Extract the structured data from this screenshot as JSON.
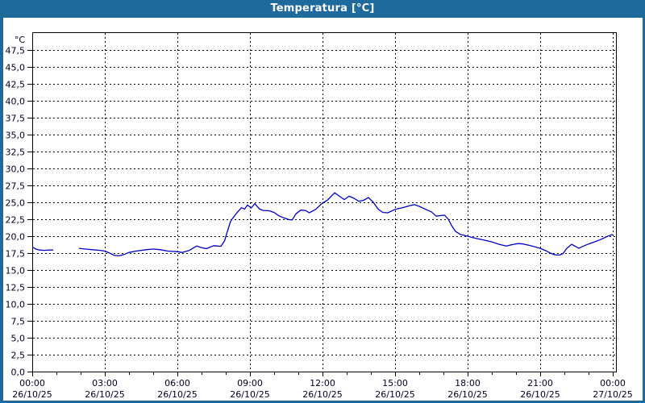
{
  "window": {
    "title": "Temperatura [°C]"
  },
  "colors": {
    "titlebar": "#1E6A9C",
    "titlebar_text": "#FFFFFF",
    "frame_border": "#1E6A9C",
    "background": "#FFFFFF",
    "plot_border": "#000000",
    "grid": "#000000",
    "line": "#0000C8",
    "tick_text": "#000028"
  },
  "chart_data": {
    "type": "line",
    "title": "Temperatura [°C]",
    "y_unit": "°C",
    "ylim": [
      0,
      50
    ],
    "y_tick_step": 2.5,
    "y_tick_max": 47.5,
    "y_decimal_separator": ",",
    "grid": "dashed",
    "legend": "none",
    "x_span_hours": 24,
    "x_minor_tick_hours": 1,
    "x_major_ticks": [
      {
        "t": 0,
        "time": "00:00",
        "date": "26/10/25"
      },
      {
        "t": 3,
        "time": "03:00",
        "date": "26/10/25"
      },
      {
        "t": 6,
        "time": "06:00",
        "date": "26/10/25"
      },
      {
        "t": 9,
        "time": "09:00",
        "date": "26/10/25"
      },
      {
        "t": 12,
        "time": "12:00",
        "date": "26/10/25"
      },
      {
        "t": 15,
        "time": "15:00",
        "date": "26/10/25"
      },
      {
        "t": 18,
        "time": "18:00",
        "date": "26/10/25"
      },
      {
        "t": 21,
        "time": "21:00",
        "date": "26/10/25"
      },
      {
        "t": 24,
        "time": "00:00",
        "date": "27/10/25"
      }
    ],
    "series": [
      {
        "name": "Temperatura",
        "points": [
          [
            0,
            18.4
          ],
          [
            0.15,
            18.1
          ],
          [
            0.3,
            17.95
          ],
          [
            0.5,
            17.9
          ],
          [
            0.7,
            17.95
          ],
          [
            0.87,
            17.95
          ],
          [
            1.4,
            null
          ],
          [
            1.93,
            18.2
          ],
          [
            2.2,
            18.1
          ],
          [
            2.5,
            18.0
          ],
          [
            2.8,
            17.9
          ],
          [
            3.0,
            17.8
          ],
          [
            3.2,
            17.5
          ],
          [
            3.4,
            17.15
          ],
          [
            3.6,
            17.1
          ],
          [
            3.8,
            17.3
          ],
          [
            4.0,
            17.6
          ],
          [
            4.3,
            17.8
          ],
          [
            4.7,
            18.0
          ],
          [
            5.0,
            18.1
          ],
          [
            5.3,
            18.0
          ],
          [
            5.6,
            17.8
          ],
          [
            6.0,
            17.7
          ],
          [
            6.2,
            17.6
          ],
          [
            6.5,
            17.9
          ],
          [
            6.8,
            18.55
          ],
          [
            7.0,
            18.3
          ],
          [
            7.2,
            18.15
          ],
          [
            7.5,
            18.6
          ],
          [
            7.8,
            18.5
          ],
          [
            7.95,
            19.3
          ],
          [
            8.05,
            20.5
          ],
          [
            8.2,
            22.2
          ],
          [
            8.3,
            22.7
          ],
          [
            8.45,
            23.4
          ],
          [
            8.55,
            23.8
          ],
          [
            8.65,
            24.2
          ],
          [
            8.78,
            24.0
          ],
          [
            8.9,
            24.6
          ],
          [
            9.05,
            24.15
          ],
          [
            9.2,
            24.8
          ],
          [
            9.4,
            24.0
          ],
          [
            9.55,
            23.8
          ],
          [
            9.8,
            23.75
          ],
          [
            10.0,
            23.5
          ],
          [
            10.2,
            23.0
          ],
          [
            10.4,
            22.7
          ],
          [
            10.6,
            22.45
          ],
          [
            10.75,
            22.4
          ],
          [
            10.9,
            23.3
          ],
          [
            11.1,
            23.85
          ],
          [
            11.3,
            23.8
          ],
          [
            11.45,
            23.45
          ],
          [
            11.7,
            23.9
          ],
          [
            12.0,
            24.9
          ],
          [
            12.2,
            25.3
          ],
          [
            12.5,
            26.4
          ],
          [
            12.7,
            25.9
          ],
          [
            12.9,
            25.4
          ],
          [
            13.1,
            25.9
          ],
          [
            13.3,
            25.6
          ],
          [
            13.5,
            25.15
          ],
          [
            13.7,
            25.3
          ],
          [
            13.9,
            25.7
          ],
          [
            14.1,
            25.0
          ],
          [
            14.3,
            24.0
          ],
          [
            14.5,
            23.5
          ],
          [
            14.7,
            23.45
          ],
          [
            15.0,
            23.95
          ],
          [
            15.3,
            24.2
          ],
          [
            15.6,
            24.5
          ],
          [
            15.8,
            24.65
          ],
          [
            16.0,
            24.4
          ],
          [
            16.3,
            23.9
          ],
          [
            16.5,
            23.6
          ],
          [
            16.7,
            22.95
          ],
          [
            16.9,
            23.05
          ],
          [
            17.05,
            23.1
          ],
          [
            17.2,
            22.5
          ],
          [
            17.35,
            21.5
          ],
          [
            17.5,
            20.7
          ],
          [
            17.7,
            20.25
          ],
          [
            18.0,
            20.0
          ],
          [
            18.2,
            19.8
          ],
          [
            18.5,
            19.55
          ],
          [
            18.7,
            19.4
          ],
          [
            19.0,
            19.15
          ],
          [
            19.3,
            18.8
          ],
          [
            19.6,
            18.55
          ],
          [
            19.9,
            18.8
          ],
          [
            20.1,
            18.9
          ],
          [
            20.3,
            18.85
          ],
          [
            20.6,
            18.6
          ],
          [
            20.8,
            18.4
          ],
          [
            21.0,
            18.2
          ],
          [
            21.2,
            17.9
          ],
          [
            21.45,
            17.45
          ],
          [
            21.6,
            17.25
          ],
          [
            21.8,
            17.2
          ],
          [
            21.95,
            17.45
          ],
          [
            22.1,
            18.2
          ],
          [
            22.3,
            18.8
          ],
          [
            22.45,
            18.5
          ],
          [
            22.6,
            18.2
          ],
          [
            22.8,
            18.55
          ],
          [
            23.0,
            18.85
          ],
          [
            23.2,
            19.1
          ],
          [
            23.5,
            19.5
          ],
          [
            23.8,
            20.0
          ],
          [
            24.0,
            20.25
          ]
        ]
      }
    ]
  }
}
